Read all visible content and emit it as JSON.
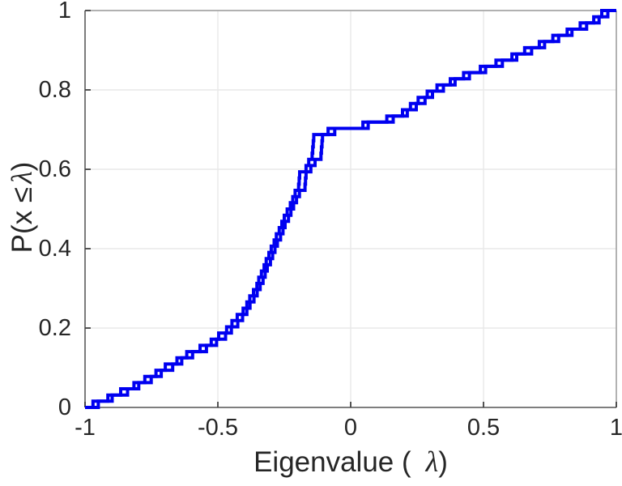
{
  "figure": {
    "background": "#ffffff",
    "text_color": "#262626",
    "axis_color": "#6e6e6e",
    "box_color": "#9b9b9b",
    "tick_color": "#424242",
    "grid_color": "#e8e8e8"
  },
  "chart_data": {
    "type": "step",
    "subtype": "empirical-cdf-staircase",
    "title": "",
    "xlabel": {
      "prefix": "Eigenvalue (",
      "symbol": "λ",
      "suffix": ")"
    },
    "ylabel": {
      "prefix": "P(x ≤",
      "symbol": "λ",
      "suffix": ")"
    },
    "xlim": [
      -1,
      1
    ],
    "ylim": [
      0,
      1
    ],
    "grid": true,
    "legend": null,
    "xticks": [
      {
        "value": -1,
        "label": "-1"
      },
      {
        "value": -0.5,
        "label": "-0.5"
      },
      {
        "value": 0,
        "label": "0"
      },
      {
        "value": 0.5,
        "label": "0.5"
      },
      {
        "value": 1,
        "label": "1"
      }
    ],
    "yticks": [
      {
        "value": 0,
        "label": "0"
      },
      {
        "value": 0.2,
        "label": "0.2"
      },
      {
        "value": 0.4,
        "label": "0.4"
      },
      {
        "value": 0.6,
        "label": "0.6"
      },
      {
        "value": 0.8,
        "label": "0.8"
      },
      {
        "value": 1,
        "label": "1"
      }
    ],
    "series": [
      {
        "name": "ecdf-curve-1",
        "color": "#0000f0",
        "line_width": 4,
        "n": 64,
        "step_height": 0.015625,
        "eigenvalues": [
          -0.97,
          -0.914,
          -0.866,
          -0.816,
          -0.775,
          -0.733,
          -0.698,
          -0.654,
          -0.617,
          -0.567,
          -0.525,
          -0.497,
          -0.467,
          -0.447,
          -0.427,
          -0.405,
          -0.391,
          -0.38,
          -0.366,
          -0.353,
          -0.346,
          -0.336,
          -0.326,
          -0.318,
          -0.308,
          -0.299,
          -0.288,
          -0.28,
          -0.269,
          -0.259,
          -0.25,
          -0.239,
          -0.227,
          -0.218,
          -0.209,
          -0.196,
          -0.194,
          -0.192,
          -0.168,
          -0.158,
          -0.145,
          -0.143,
          -0.141,
          -0.139,
          -0.085,
          0.046,
          0.136,
          0.195,
          0.225,
          0.254,
          0.288,
          0.325,
          0.375,
          0.425,
          0.488,
          0.547,
          0.607,
          0.655,
          0.71,
          0.761,
          0.815,
          0.864,
          0.915,
          0.945
        ]
      },
      {
        "name": "ecdf-curve-2",
        "color": "#0000f0",
        "line_width": 4,
        "n": 64,
        "step_height": 0.015625,
        "eigenvalues": [
          -0.95,
          -0.898,
          -0.84,
          -0.798,
          -0.751,
          -0.713,
          -0.67,
          -0.636,
          -0.595,
          -0.543,
          -0.505,
          -0.471,
          -0.449,
          -0.425,
          -0.407,
          -0.391,
          -0.379,
          -0.364,
          -0.352,
          -0.341,
          -0.33,
          -0.322,
          -0.314,
          -0.302,
          -0.294,
          -0.285,
          -0.276,
          -0.264,
          -0.255,
          -0.247,
          -0.234,
          -0.225,
          -0.215,
          -0.204,
          -0.193,
          -0.172,
          -0.17,
          -0.168,
          -0.15,
          -0.134,
          -0.112,
          -0.11,
          -0.108,
          -0.106,
          -0.06,
          0.066,
          0.16,
          0.213,
          0.247,
          0.28,
          0.308,
          0.349,
          0.393,
          0.447,
          0.508,
          0.571,
          0.625,
          0.681,
          0.73,
          0.783,
          0.833,
          0.888,
          0.935,
          0.968
        ]
      }
    ]
  }
}
